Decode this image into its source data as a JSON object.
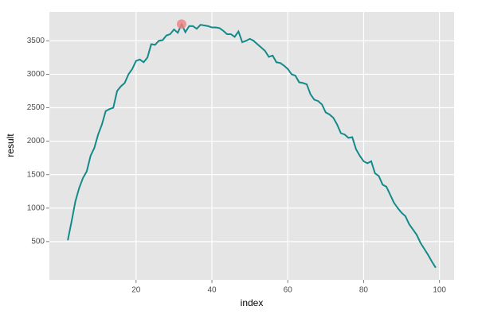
{
  "chart_data": {
    "type": "line",
    "x_label": "index",
    "y_label": "result",
    "x": [
      2,
      3,
      4,
      5,
      6,
      7,
      8,
      9,
      10,
      11,
      12,
      13,
      14,
      15,
      16,
      17,
      18,
      19,
      20,
      21,
      22,
      23,
      24,
      25,
      26,
      27,
      28,
      29,
      30,
      31,
      32,
      33,
      34,
      35,
      36,
      37,
      38,
      39,
      40,
      41,
      42,
      43,
      44,
      45,
      46,
      47,
      48,
      49,
      50,
      51,
      52,
      53,
      54,
      55,
      56,
      57,
      58,
      59,
      60,
      61,
      62,
      63,
      64,
      65,
      66,
      67,
      68,
      69,
      70,
      71,
      72,
      73,
      74,
      75,
      76,
      77,
      78,
      79,
      80,
      81,
      82,
      83,
      84,
      85,
      86,
      87,
      88,
      89,
      90,
      91,
      92,
      93,
      94,
      95,
      96,
      97,
      98,
      99
    ],
    "series": [
      {
        "color": "#138a8a",
        "values": [
          520,
          800,
          1100,
          1300,
          1450,
          1550,
          1780,
          1900,
          2100,
          2250,
          2450,
          2480,
          2500,
          2750,
          2820,
          2870,
          3000,
          3080,
          3200,
          3220,
          3180,
          3250,
          3450,
          3440,
          3500,
          3510,
          3580,
          3600,
          3670,
          3620,
          3750,
          3630,
          3720,
          3720,
          3680,
          3740,
          3730,
          3720,
          3700,
          3700,
          3690,
          3650,
          3600,
          3600,
          3560,
          3640,
          3480,
          3500,
          3530,
          3500,
          3450,
          3400,
          3350,
          3260,
          3280,
          3180,
          3170,
          3130,
          3080,
          3000,
          2980,
          2880,
          2870,
          2850,
          2700,
          2620,
          2600,
          2550,
          2430,
          2400,
          2350,
          2250,
          2120,
          2100,
          2050,
          2060,
          1880,
          1780,
          1700,
          1670,
          1700,
          1520,
          1480,
          1350,
          1320,
          1200,
          1080,
          1000,
          930,
          880,
          760,
          680,
          600,
          480,
          390,
          300,
          200,
          110
        ]
      }
    ],
    "highlight": {
      "x": 32,
      "y": 3750,
      "color": "#f08080"
    },
    "xlim": [
      -2.85,
      103.85
    ],
    "ylim": [
      -72,
      3932
    ],
    "xticks": [
      20,
      40,
      60,
      80,
      100
    ],
    "yticks": [
      500,
      1000,
      1500,
      2000,
      2500,
      3000,
      3500
    ],
    "grid": true
  }
}
